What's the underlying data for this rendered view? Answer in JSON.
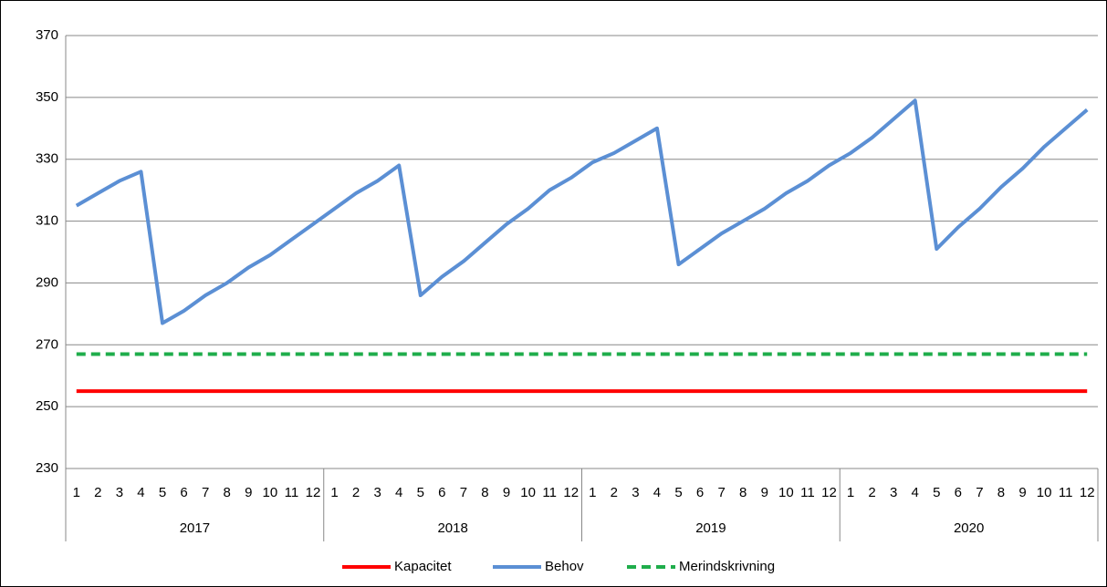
{
  "chart_data": {
    "type": "line",
    "categories": [
      "1",
      "2",
      "3",
      "4",
      "5",
      "6",
      "7",
      "8",
      "9",
      "10",
      "11",
      "12",
      "1",
      "2",
      "3",
      "4",
      "5",
      "6",
      "7",
      "8",
      "9",
      "10",
      "11",
      "12",
      "1",
      "2",
      "3",
      "4",
      "5",
      "6",
      "7",
      "8",
      "9",
      "10",
      "11",
      "12",
      "1",
      "2",
      "3",
      "4",
      "5",
      "6",
      "7",
      "8",
      "9",
      "10",
      "11",
      "12"
    ],
    "groups": [
      "2017",
      "2018",
      "2019",
      "2020"
    ],
    "ylim": [
      230,
      370
    ],
    "yticks": [
      230,
      250,
      270,
      290,
      310,
      330,
      350,
      370
    ],
    "grid": true,
    "legend": "bottom",
    "series": [
      {
        "name": "Kapacitet",
        "color": "#ff0000",
        "dashed": false,
        "values": [
          255,
          255,
          255,
          255,
          255,
          255,
          255,
          255,
          255,
          255,
          255,
          255,
          255,
          255,
          255,
          255,
          255,
          255,
          255,
          255,
          255,
          255,
          255,
          255,
          255,
          255,
          255,
          255,
          255,
          255,
          255,
          255,
          255,
          255,
          255,
          255,
          255,
          255,
          255,
          255,
          255,
          255,
          255,
          255,
          255,
          255,
          255,
          255
        ]
      },
      {
        "name": "Behov",
        "color": "#5b8fd4",
        "dashed": false,
        "values": [
          315,
          319,
          323,
          326,
          277,
          281,
          286,
          290,
          295,
          299,
          304,
          309,
          314,
          319,
          323,
          328,
          286,
          292,
          297,
          303,
          309,
          314,
          320,
          324,
          329,
          332,
          336,
          340,
          296,
          301,
          306,
          310,
          314,
          319,
          323,
          328,
          332,
          337,
          343,
          349,
          301,
          308,
          314,
          321,
          327,
          334,
          340,
          346
        ]
      },
      {
        "name": "Merindskrivning",
        "color": "#1fad4b",
        "dashed": true,
        "values": [
          267,
          267,
          267,
          267,
          267,
          267,
          267,
          267,
          267,
          267,
          267,
          267,
          267,
          267,
          267,
          267,
          267,
          267,
          267,
          267,
          267,
          267,
          267,
          267,
          267,
          267,
          267,
          267,
          267,
          267,
          267,
          267,
          267,
          267,
          267,
          267,
          267,
          267,
          267,
          267,
          267,
          267,
          267,
          267,
          267,
          267,
          267,
          267
        ]
      }
    ]
  }
}
